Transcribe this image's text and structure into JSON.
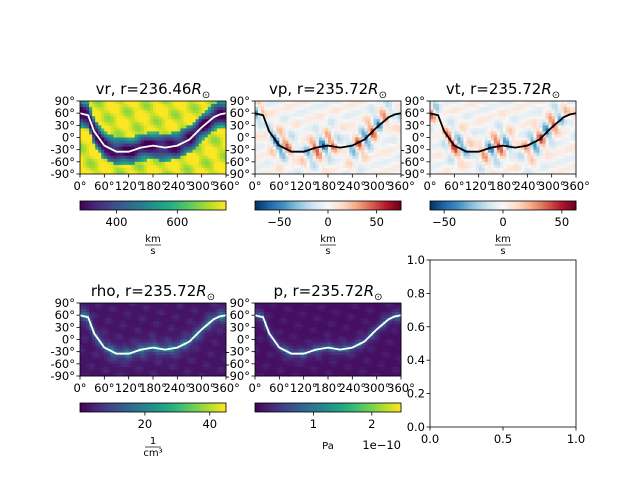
{
  "figure": {
    "panels": [
      {
        "id": "vr",
        "title": "vr, r=236.46",
        "title_sub": "R",
        "title_sym": "⊙",
        "colormap": "viridis",
        "colorbar": {
          "min": 280,
          "max": 760,
          "ticks": [
            "400",
            "600"
          ],
          "tick_values": [
            400,
            600
          ],
          "unit_num": "km",
          "unit_den": "s",
          "offset_text": ""
        },
        "line_color": "#ffffff"
      },
      {
        "id": "vp",
        "title": "vp, r=235.72",
        "title_sub": "R",
        "title_sym": "⊙",
        "colormap": "RdBu_r",
        "colorbar": {
          "min": -75,
          "max": 75,
          "ticks": [
            "−50",
            "0",
            "50"
          ],
          "tick_values": [
            -50,
            0,
            50
          ],
          "unit_num": "km",
          "unit_den": "s",
          "offset_text": ""
        },
        "line_color": "#000000"
      },
      {
        "id": "vt",
        "title": "vt, r=235.72",
        "title_sub": "R",
        "title_sym": "⊙",
        "colormap": "RdBu_r",
        "colorbar": {
          "min": -62,
          "max": 62,
          "ticks": [
            "−50",
            "0",
            "50"
          ],
          "tick_values": [
            -50,
            0,
            50
          ],
          "unit_num": "km",
          "unit_den": "s",
          "offset_text": ""
        },
        "line_color": "#000000"
      },
      {
        "id": "rho",
        "title": "rho, r=235.72",
        "title_sub": "R",
        "title_sym": "⊙",
        "colormap": "viridis",
        "colorbar": {
          "min": 0,
          "max": 45,
          "ticks": [
            "20",
            "40"
          ],
          "tick_values": [
            20,
            40
          ],
          "unit_num": "1",
          "unit_den": "cm³",
          "offset_text": ""
        },
        "line_color": "#ffffff"
      },
      {
        "id": "p",
        "title": "p, r=235.72",
        "title_sub": "R",
        "title_sym": "⊙",
        "colormap": "viridis",
        "colorbar": {
          "min": 0,
          "max": 2.5,
          "ticks": [
            "1",
            "2"
          ],
          "tick_values": [
            1,
            2
          ],
          "unit_num": "",
          "unit_den": "",
          "unit_text": "Pa",
          "offset_text": "1e−10"
        },
        "line_color": "#ffffff"
      }
    ],
    "x_ticks": [
      "0°",
      "60°",
      "120°",
      "180°",
      "240°",
      "300°",
      "360°"
    ],
    "y_ticks": [
      "90°",
      "60°",
      "30°",
      "0°",
      "-30°",
      "-60°",
      "-90°"
    ],
    "empty_axes": {
      "x_ticks": [
        "0.0",
        "0.5",
        "1.0"
      ],
      "y_ticks": [
        "0.0",
        "0.2",
        "0.4",
        "0.6",
        "0.8",
        "1.0"
      ]
    }
  },
  "chart_data": [
    {
      "type": "heatmap",
      "title": "vr, r=236.46R⊙",
      "x_range": [
        0,
        360
      ],
      "y_range": [
        -90,
        90
      ],
      "x_ticks": [
        0,
        60,
        120,
        180,
        240,
        300,
        360
      ],
      "y_ticks": [
        -90,
        -60,
        -30,
        0,
        30,
        60,
        90
      ],
      "colorbar_range": [
        280,
        760
      ],
      "colorbar_unit": "km/s",
      "neutral_line": {
        "x": [
          0,
          20,
          35,
          60,
          90,
          120,
          150,
          180,
          210,
          240,
          270,
          300,
          330,
          345,
          360
        ],
        "y": [
          60,
          55,
          15,
          -20,
          -35,
          -35,
          -25,
          -20,
          -25,
          -20,
          -5,
          25,
          50,
          57,
          60
        ]
      }
    },
    {
      "type": "heatmap",
      "title": "vp, r=235.72R⊙",
      "x_range": [
        0,
        360
      ],
      "y_range": [
        -90,
        90
      ],
      "x_ticks": [
        0,
        60,
        120,
        180,
        240,
        300,
        360
      ],
      "y_ticks": [
        -90,
        -60,
        -30,
        0,
        30,
        60,
        90
      ],
      "colorbar_range": [
        -75,
        75
      ],
      "colorbar_unit": "km/s",
      "neutral_line": {
        "x": [
          0,
          20,
          35,
          60,
          90,
          120,
          150,
          180,
          210,
          240,
          270,
          300,
          330,
          345,
          360
        ],
        "y": [
          60,
          55,
          15,
          -20,
          -35,
          -35,
          -25,
          -20,
          -25,
          -20,
          -5,
          25,
          50,
          57,
          60
        ]
      }
    },
    {
      "type": "heatmap",
      "title": "vt, r=235.72R⊙",
      "x_range": [
        0,
        360
      ],
      "y_range": [
        -90,
        90
      ],
      "x_ticks": [
        0,
        60,
        120,
        180,
        240,
        300,
        360
      ],
      "y_ticks": [
        -90,
        -60,
        -30,
        0,
        30,
        60,
        90
      ],
      "colorbar_range": [
        -62,
        62
      ],
      "colorbar_unit": "km/s",
      "neutral_line": {
        "x": [
          0,
          20,
          35,
          60,
          90,
          120,
          150,
          180,
          210,
          240,
          270,
          300,
          330,
          345,
          360
        ],
        "y": [
          60,
          55,
          15,
          -20,
          -35,
          -35,
          -25,
          -20,
          -25,
          -20,
          -5,
          25,
          50,
          57,
          60
        ]
      }
    },
    {
      "type": "heatmap",
      "title": "rho, r=235.72R⊙",
      "x_range": [
        0,
        360
      ],
      "y_range": [
        -90,
        90
      ],
      "x_ticks": [
        0,
        60,
        120,
        180,
        240,
        300,
        360
      ],
      "y_ticks": [
        -90,
        -60,
        -30,
        0,
        30,
        60,
        90
      ],
      "colorbar_range": [
        0,
        45
      ],
      "colorbar_unit": "1/cm³",
      "neutral_line": {
        "x": [
          0,
          20,
          35,
          60,
          90,
          120,
          150,
          180,
          210,
          240,
          270,
          300,
          330,
          345,
          360
        ],
        "y": [
          60,
          55,
          15,
          -20,
          -35,
          -35,
          -25,
          -20,
          -25,
          -20,
          -5,
          25,
          50,
          57,
          60
        ]
      }
    },
    {
      "type": "heatmap",
      "title": "p, r=235.72R⊙",
      "x_range": [
        0,
        360
      ],
      "y_range": [
        -90,
        90
      ],
      "x_ticks": [
        0,
        60,
        120,
        180,
        240,
        300,
        360
      ],
      "y_ticks": [
        -90,
        -60,
        -30,
        0,
        30,
        60,
        90
      ],
      "colorbar_range": [
        0,
        2.5e-10
      ],
      "colorbar_unit": "Pa",
      "neutral_line": {
        "x": [
          0,
          20,
          35,
          60,
          90,
          120,
          150,
          180,
          210,
          240,
          270,
          300,
          330,
          345,
          360
        ],
        "y": [
          60,
          55,
          15,
          -20,
          -35,
          -35,
          -25,
          -20,
          -25,
          -20,
          -5,
          25,
          50,
          57,
          60
        ]
      }
    },
    {
      "type": "line",
      "title": "",
      "series": [],
      "xlim": [
        0,
        1
      ],
      "ylim": [
        0,
        1
      ],
      "x_ticks": [
        0.0,
        0.5,
        1.0
      ],
      "y_ticks": [
        0.0,
        0.2,
        0.4,
        0.6,
        0.8,
        1.0
      ]
    }
  ]
}
